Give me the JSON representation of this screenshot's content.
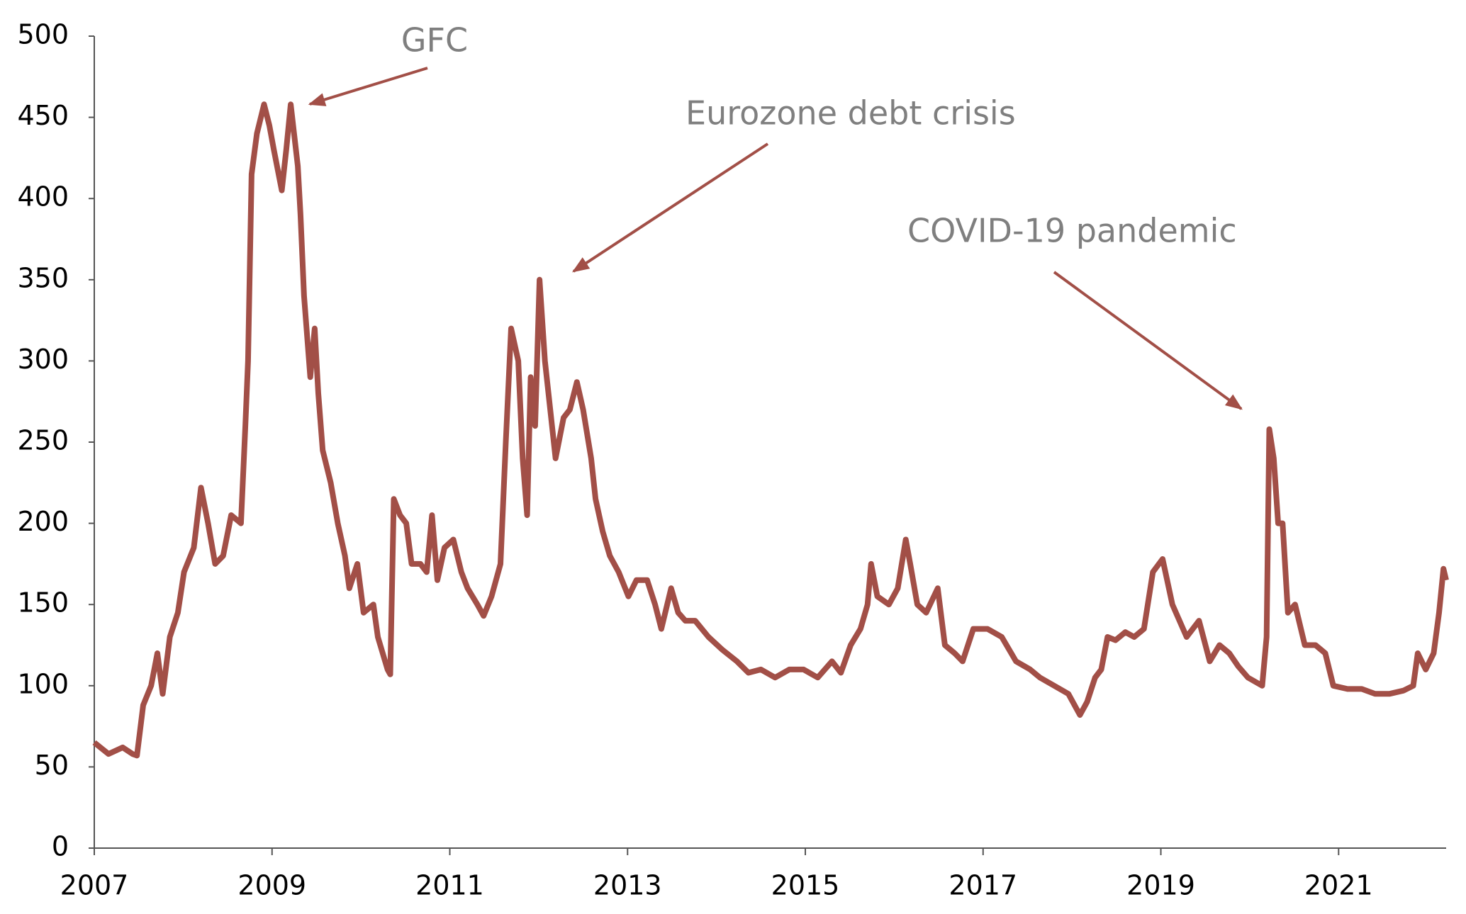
{
  "chart_data": {
    "type": "line",
    "x": [
      2007,
      2007.16,
      2007.32,
      2007.43,
      2007.48,
      2007.55,
      2007.64,
      2007.71,
      2007.77,
      2007.85,
      2007.94,
      2008.01,
      2008.12,
      2008.2,
      2008.28,
      2008.36,
      2008.45,
      2008.54,
      2008.65,
      2008.7,
      2008.73,
      2008.77,
      2008.83,
      2008.91,
      2008.97,
      2009.02,
      2009.11,
      2009.16,
      2009.21,
      2009.29,
      2009.32,
      2009.36,
      2009.43,
      2009.48,
      2009.52,
      2009.57,
      2009.66,
      2009.74,
      2009.82,
      2009.87,
      2009.96,
      2010.03,
      2010.14,
      2010.19,
      2010.3,
      2010.33,
      2010.37,
      2010.44,
      2010.51,
      2010.57,
      2010.67,
      2010.74,
      2010.8,
      2010.86,
      2010.94,
      2011.04,
      2011.13,
      2011.2,
      2011.31,
      2011.38,
      2011.47,
      2011.57,
      2011.63,
      2011.69,
      2011.77,
      2011.82,
      2011.87,
      2011.91,
      2011.96,
      2012.01,
      2012.07,
      2012.13,
      2012.19,
      2012.28,
      2012.35,
      2012.43,
      2012.5,
      2012.59,
      2012.64,
      2012.72,
      2012.8,
      2012.9,
      2013.01,
      2013.1,
      2013.22,
      2013.31,
      2013.38,
      2013.49,
      2013.57,
      2013.65,
      2013.76,
      2013.91,
      2014.07,
      2014.23,
      2014.36,
      2014.5,
      2014.66,
      2014.82,
      2014.98,
      2015.14,
      2015.3,
      2015.4,
      2015.51,
      2015.62,
      2015.7,
      2015.74,
      2015.81,
      2015.94,
      2016.04,
      2016.13,
      2016.18,
      2016.26,
      2016.36,
      2016.49,
      2016.57,
      2016.68,
      2016.77,
      2016.89,
      2017.05,
      2017.21,
      2017.37,
      2017.53,
      2017.64,
      2017.8,
      2017.96,
      2018.09,
      2018.17,
      2018.26,
      2018.33,
      2018.4,
      2018.49,
      2018.6,
      2018.7,
      2018.81,
      2018.91,
      2019.02,
      2019.13,
      2019.29,
      2019.43,
      2019.55,
      2019.66,
      2019.77,
      2019.87,
      2019.98,
      2020.14,
      2020.19,
      2020.22,
      2020.27,
      2020.32,
      2020.37,
      2020.43,
      2020.51,
      2020.62,
      2020.74,
      2020.85,
      2020.94,
      2021.1,
      2021.26,
      2021.41,
      2021.57,
      2021.73,
      2021.84,
      2021.89,
      2021.98,
      2022.07,
      2022.13,
      2022.18,
      2022.21
    ],
    "series": [
      {
        "color": "#a24f47",
        "values": [
          65,
          58,
          62,
          58,
          57,
          88,
          100,
          120,
          95,
          130,
          145,
          170,
          185,
          222,
          200,
          175,
          180,
          205,
          200,
          260,
          300,
          415,
          440,
          458,
          445,
          430,
          405,
          430,
          458,
          420,
          390,
          340,
          290,
          320,
          280,
          245,
          225,
          200,
          180,
          160,
          175,
          145,
          150,
          130,
          110,
          107,
          215,
          205,
          200,
          175,
          175,
          170,
          205,
          165,
          185,
          190,
          170,
          160,
          150,
          143,
          155,
          175,
          250,
          320,
          300,
          240,
          205,
          290,
          260,
          350,
          300,
          270,
          240,
          265,
          270,
          287,
          270,
          240,
          215,
          195,
          180,
          170,
          155,
          165,
          165,
          150,
          135,
          160,
          145,
          140,
          140,
          130,
          122,
          115,
          108,
          110,
          105,
          110,
          110,
          105,
          115,
          108,
          125,
          135,
          150,
          175,
          155,
          150,
          160,
          190,
          175,
          150,
          145,
          160,
          125,
          120,
          115,
          135,
          135,
          130,
          115,
          110,
          105,
          100,
          95,
          82,
          90,
          105,
          110,
          130,
          128,
          133,
          130,
          135,
          170,
          178,
          150,
          130,
          140,
          115,
          125,
          120,
          112,
          105,
          100,
          130,
          258,
          240,
          200,
          200,
          145,
          150,
          125,
          125,
          120,
          100,
          98,
          98,
          95,
          95,
          97,
          100,
          120,
          110,
          120,
          145,
          172,
          165
        ]
      }
    ],
    "xlim": [
      2007,
      2022.21
    ],
    "xticks": [
      2007,
      2009,
      2011,
      2013,
      2015,
      2017,
      2019,
      2021
    ],
    "ylim": [
      0,
      500
    ],
    "yticks": [
      0,
      50,
      100,
      150,
      200,
      250,
      300,
      350,
      400,
      450,
      500
    ],
    "annotations": [
      {
        "text": "GFC"
      },
      {
        "text": "Eurozone debt crisis"
      },
      {
        "text": "COVID-19 pandemic"
      }
    ]
  }
}
